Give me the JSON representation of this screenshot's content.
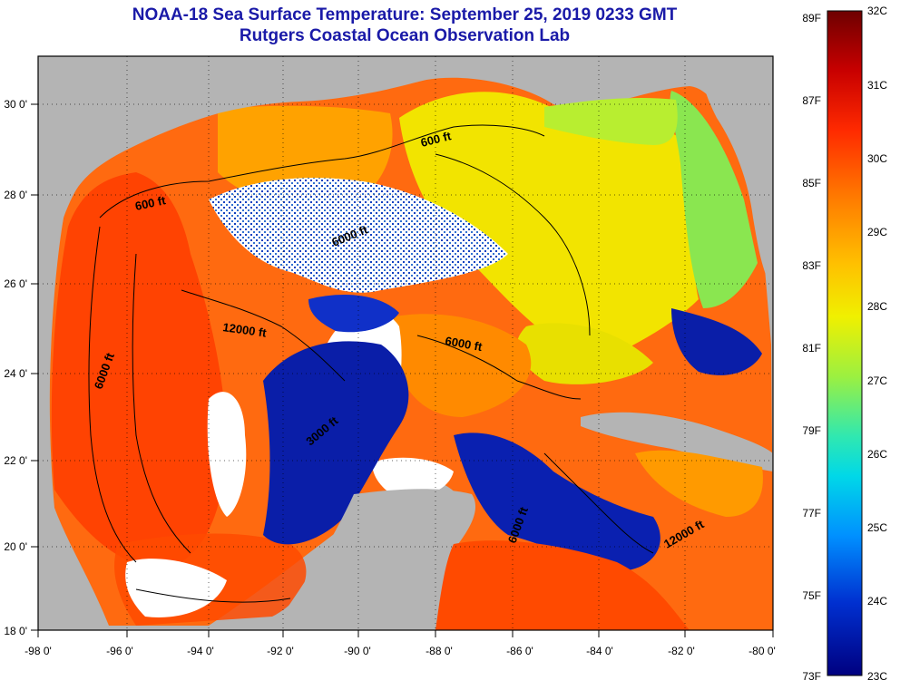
{
  "header": {
    "title": "NOAA-18 Sea Surface Temperature:  September 25, 2019 0233 GMT",
    "subtitle": "Rutgers Coastal Ocean Observation Lab"
  },
  "map": {
    "lon_ticks": [
      "-98 0'",
      "-96 0'",
      "-94 0'",
      "-92 0'",
      "-90 0'",
      "-88 0'",
      "-86 0'",
      "-84 0'",
      "-82 0'",
      "-80 0'"
    ],
    "lat_ticks": [
      "18 0'",
      "20 0'",
      "22 0'",
      "24 0'",
      "26 0'",
      "28 0'",
      "30 0'"
    ],
    "contour_labels": [
      "600 ft",
      "600 ft",
      "6000 ft",
      "12000 ft",
      "6000 ft",
      "6000 ft",
      "3000 ft",
      "12000 ft",
      "6000 ft"
    ]
  },
  "colorbar": {
    "fahrenheit": [
      "89F",
      "87F",
      "85F",
      "83F",
      "81F",
      "79F",
      "77F",
      "75F",
      "73F"
    ],
    "celsius": [
      "32C",
      "31C",
      "30C",
      "29C",
      "28C",
      "27C",
      "26C",
      "25C",
      "24C",
      "23C"
    ],
    "colors": [
      "#6e0000",
      "#c80000",
      "#ff2a00",
      "#ff7a00",
      "#ffc000",
      "#f0f000",
      "#9cf040",
      "#30e8b0",
      "#00d8e8",
      "#0090ff",
      "#0030d0",
      "#000080"
    ]
  },
  "colors": {
    "land": "#b4b4b4",
    "cloud": "#ffffff",
    "title": "#1a1aa8"
  }
}
